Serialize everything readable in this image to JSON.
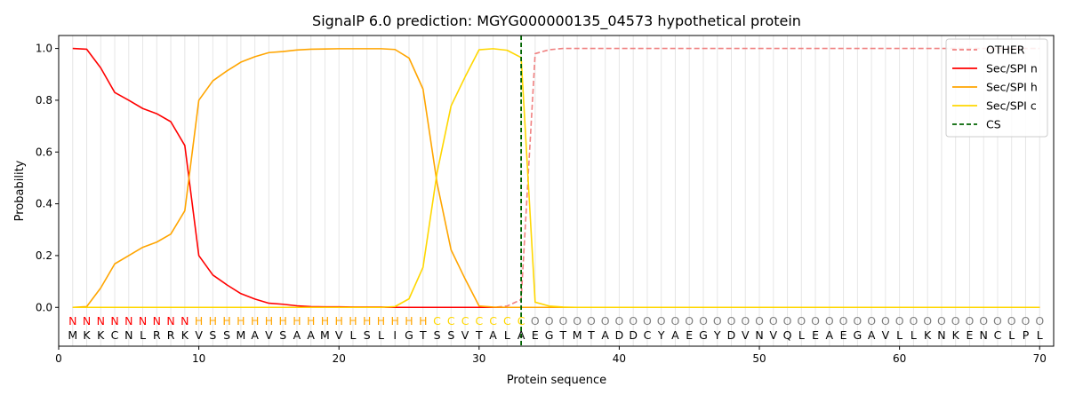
{
  "chart_data": {
    "type": "line",
    "title": "SignalP 6.0 prediction: MGYG000000135_04573 hypothetical protein",
    "xlabel": "Protein sequence",
    "ylabel": "Probability",
    "xlim": [
      0,
      71
    ],
    "ylim": [
      -0.15,
      1.05
    ],
    "xticks": [
      0,
      10,
      20,
      30,
      40,
      50,
      60,
      70
    ],
    "yticks": [
      0.0,
      0.2,
      0.4,
      0.6,
      0.8,
      1.0
    ],
    "xtick_labels": [
      "0",
      "10",
      "20",
      "30",
      "40",
      "50",
      "60",
      "70"
    ],
    "ytick_labels": [
      "0.0",
      "0.2",
      "0.4",
      "0.6",
      "0.8",
      "1.0"
    ],
    "sequence": "MKKCNLRRKVSSMAVSAAMVLSLIGTSSVTALAEGTMTADDCYAEGYDVNVQLEAEGAVLLKNKENCLPL",
    "region_labels": "NNNNNNNNNHHHHHHHHHHHHHHHHHCCCCCCCOOOOOOOOOOOOOOOOOOOOOOOOOOOOOOOOOOOOO",
    "region_colors": {
      "N": "#ff0000",
      "H": "#ffa500",
      "C": "#ffd700",
      "O": "#808080"
    },
    "x": [
      1,
      2,
      3,
      4,
      5,
      6,
      7,
      8,
      9,
      10,
      11,
      12,
      13,
      14,
      15,
      16,
      17,
      18,
      19,
      20,
      21,
      22,
      23,
      24,
      25,
      26,
      27,
      28,
      29,
      30,
      31,
      32,
      33,
      34,
      35,
      36,
      37,
      38,
      39,
      40,
      41,
      42,
      43,
      44,
      45,
      46,
      47,
      48,
      49,
      50,
      51,
      52,
      53,
      54,
      55,
      56,
      57,
      58,
      59,
      60,
      61,
      62,
      63,
      64,
      65,
      66,
      67,
      68,
      69,
      70
    ],
    "series": [
      {
        "name": "OTHER",
        "color": "#f08080",
        "dashed": true,
        "values": [
          0,
          0,
          0,
          0,
          0,
          0,
          0,
          0,
          0,
          0,
          0,
          0,
          0,
          0,
          0,
          0,
          0,
          0,
          0,
          0,
          0,
          0,
          0,
          0,
          0,
          0,
          0,
          0,
          0,
          0,
          0,
          0.005,
          0.03,
          0.98,
          0.995,
          1,
          1,
          1,
          1,
          1,
          1,
          1,
          1,
          1,
          1,
          1,
          1,
          1,
          1,
          1,
          1,
          1,
          1,
          1,
          1,
          1,
          1,
          1,
          1,
          1,
          1,
          1,
          1,
          1,
          1,
          1,
          1,
          1,
          1,
          1
        ]
      },
      {
        "name": "Sec/SPI n",
        "color": "#ff0000",
        "dashed": false,
        "values": [
          1.0,
          0.997,
          0.925,
          0.83,
          0.8,
          0.768,
          0.748,
          0.717,
          0.625,
          0.2,
          0.125,
          0.087,
          0.053,
          0.032,
          0.016,
          0.012,
          0.006,
          0.003,
          0.002,
          0.002,
          0.001,
          0.001,
          0.001,
          0,
          0,
          0,
          0,
          0,
          0,
          0,
          0,
          0,
          0,
          0,
          0,
          0,
          0,
          0,
          0,
          0,
          0,
          0,
          0,
          0,
          0,
          0,
          0,
          0,
          0,
          0,
          0,
          0,
          0,
          0,
          0,
          0,
          0,
          0,
          0,
          0,
          0,
          0,
          0,
          0,
          0,
          0,
          0,
          0,
          0,
          0
        ]
      },
      {
        "name": "Sec/SPI h",
        "color": "#ffa500",
        "dashed": false,
        "values": [
          0,
          0.003,
          0.075,
          0.168,
          0.2,
          0.232,
          0.252,
          0.283,
          0.373,
          0.8,
          0.875,
          0.913,
          0.947,
          0.968,
          0.984,
          0.988,
          0.994,
          0.997,
          0.998,
          0.999,
          0.999,
          0.999,
          0.999,
          0.996,
          0.963,
          0.843,
          0.48,
          0.222,
          0.11,
          0.005,
          0.001,
          0,
          0,
          0,
          0,
          0,
          0,
          0,
          0,
          0,
          0,
          0,
          0,
          0,
          0,
          0,
          0,
          0,
          0,
          0,
          0,
          0,
          0,
          0,
          0,
          0,
          0,
          0,
          0,
          0,
          0,
          0,
          0,
          0,
          0,
          0,
          0,
          0,
          0,
          0
        ]
      },
      {
        "name": "Sec/SPI c",
        "color": "#ffd700",
        "dashed": false,
        "values": [
          0,
          0,
          0,
          0,
          0,
          0,
          0,
          0,
          0,
          0,
          0,
          0,
          0,
          0,
          0,
          0,
          0,
          0,
          0,
          0,
          0,
          0,
          0,
          0.003,
          0.033,
          0.155,
          0.52,
          0.778,
          0.89,
          0.995,
          0.999,
          0.993,
          0.965,
          0.02,
          0.005,
          0.001,
          0,
          0,
          0,
          0,
          0,
          0,
          0,
          0,
          0,
          0,
          0,
          0,
          0,
          0,
          0,
          0,
          0,
          0,
          0,
          0,
          0,
          0,
          0,
          0,
          0,
          0,
          0,
          0,
          0,
          0,
          0,
          0,
          0,
          0
        ]
      }
    ],
    "cs": {
      "name": "CS",
      "x": 33,
      "color": "#006400"
    },
    "legend": {
      "position": "top-right",
      "entries": [
        {
          "label": "OTHER",
          "color": "#f08080",
          "dashed": true
        },
        {
          "label": "Sec/SPI n",
          "color": "#ff0000",
          "dashed": false
        },
        {
          "label": "Sec/SPI h",
          "color": "#ffa500",
          "dashed": false
        },
        {
          "label": "Sec/SPI c",
          "color": "#ffd700",
          "dashed": false
        },
        {
          "label": "CS",
          "color": "#006400",
          "dashed": true
        }
      ]
    },
    "grid": "vertical-at-residues"
  }
}
